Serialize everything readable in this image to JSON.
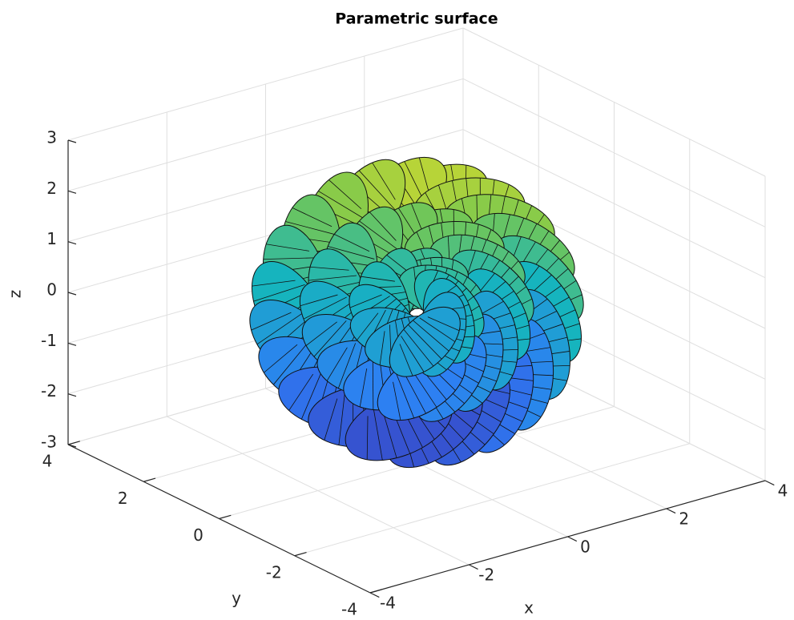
{
  "chart_data": {
    "type": "surface",
    "title": "Parametric surface",
    "xlabel": "x",
    "ylabel": "y",
    "zlabel": "z",
    "xlim": [
      -4,
      4
    ],
    "ylim": [
      -4,
      4
    ],
    "zlim": [
      -3,
      3
    ],
    "xticks": [
      -4,
      -2,
      0,
      2,
      4
    ],
    "yticks": [
      -4,
      -2,
      0,
      2,
      4
    ],
    "zticks": [
      -3,
      -2,
      -1,
      0,
      1,
      2,
      3
    ],
    "grid": true
  }
}
